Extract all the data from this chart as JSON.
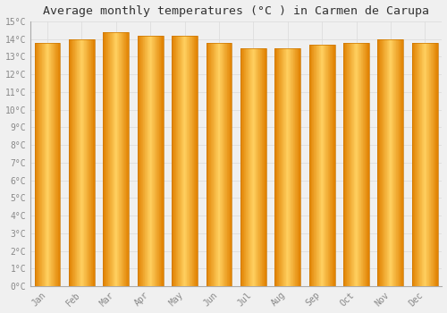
{
  "title": "Average monthly temperatures (°C ) in Carmen de Carupa",
  "months": [
    "Jan",
    "Feb",
    "Mar",
    "Apr",
    "May",
    "Jun",
    "Jul",
    "Aug",
    "Sep",
    "Oct",
    "Nov",
    "Dec"
  ],
  "values": [
    13.8,
    14.0,
    14.4,
    14.2,
    14.2,
    13.8,
    13.5,
    13.5,
    13.7,
    13.8,
    14.0,
    13.8
  ],
  "bar_color_edge": "#E08000",
  "bar_color_center": "#FFD060",
  "bar_color_mid": "#FFA820",
  "background_color": "#f0f0f0",
  "grid_color": "#dddddd",
  "ylim": [
    0,
    15
  ],
  "yticks": [
    0,
    1,
    2,
    3,
    4,
    5,
    6,
    7,
    8,
    9,
    10,
    11,
    12,
    13,
    14,
    15
  ],
  "title_fontsize": 9.5,
  "tick_fontsize": 7,
  "font_color": "#888888",
  "bar_width": 0.75
}
